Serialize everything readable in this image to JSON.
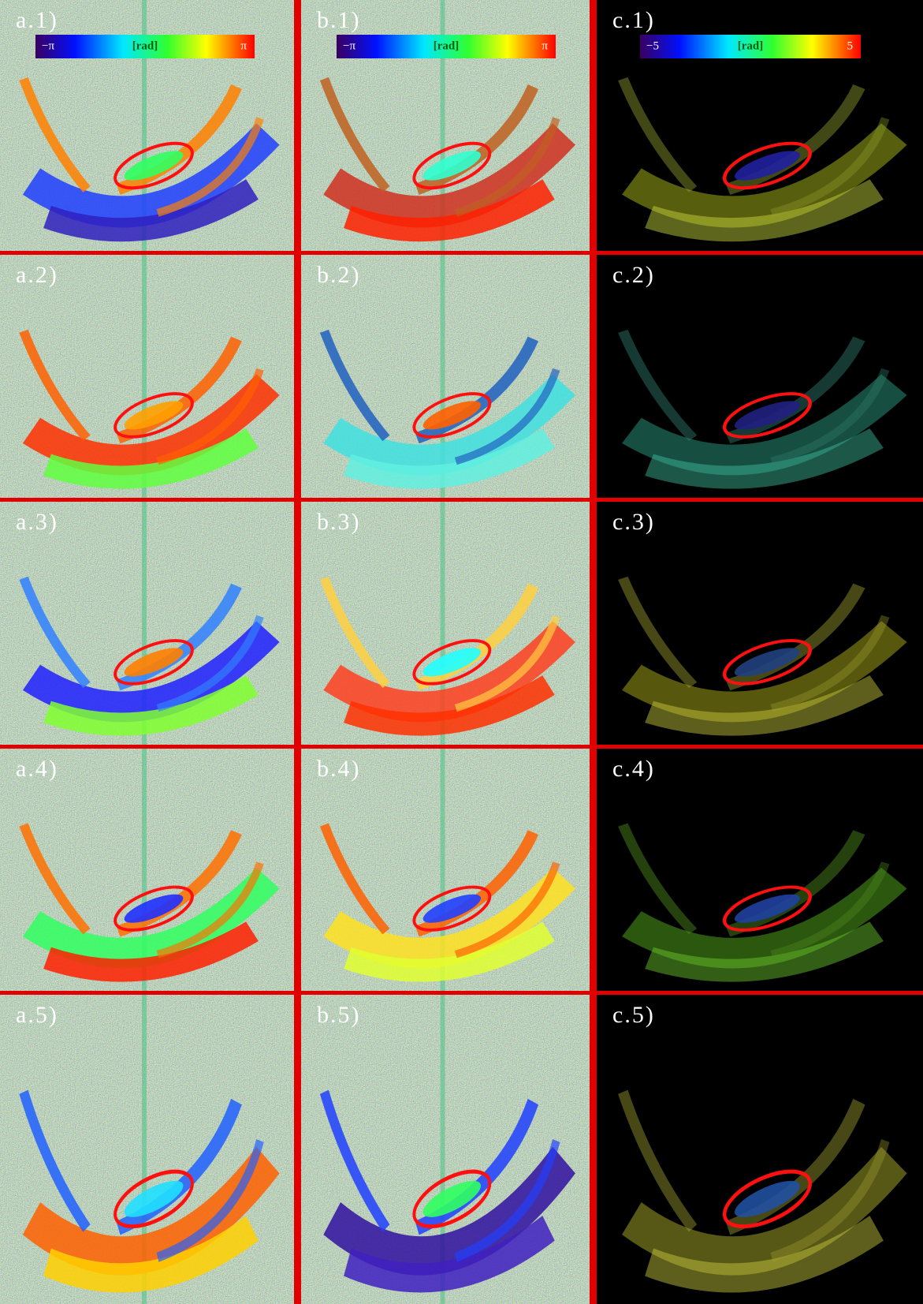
{
  "rows": [
    [
      "a.1)",
      "b.1)",
      "c.1)"
    ],
    [
      "a.2)",
      "b.2)",
      "c.2)"
    ],
    [
      "a.3)",
      "b.3)",
      "c.3)"
    ],
    [
      "a.4)",
      "b.4)",
      "c.4)"
    ],
    [
      "a.5)",
      "b.5)",
      "c.5)"
    ]
  ],
  "colorbars": [
    {
      "min": "−π",
      "unit": "[rad]",
      "max": "π"
    },
    {
      "min": "−π",
      "unit": "[rad]",
      "max": "π"
    },
    {
      "min": "−5",
      "unit": "[rad]",
      "max": "5"
    }
  ]
}
